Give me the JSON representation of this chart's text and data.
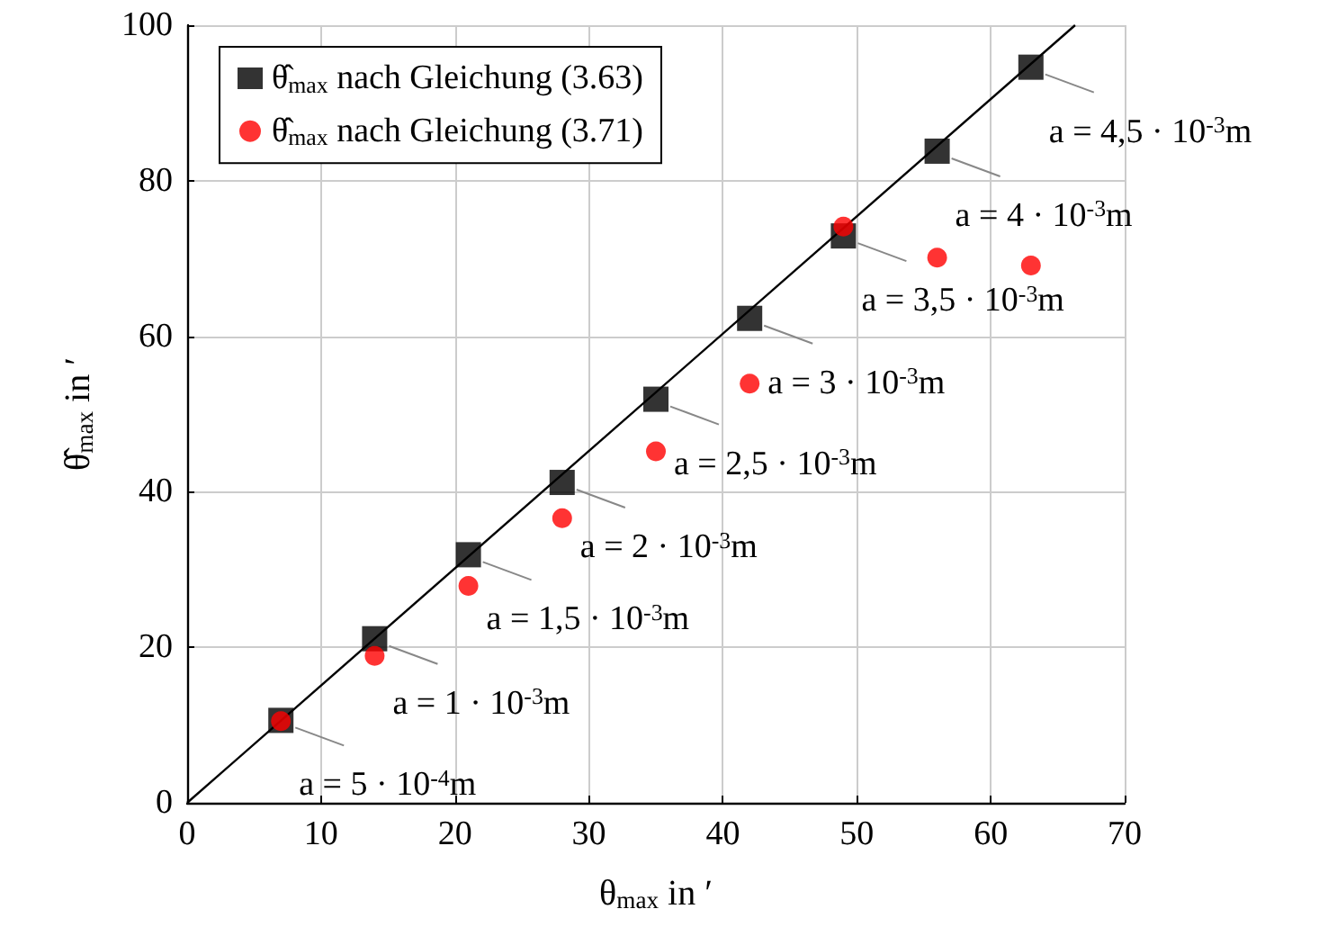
{
  "chart_data": {
    "type": "scatter",
    "xlabel": "θ$_{max}$ in ′",
    "ylabel": "θ̂$_{max}$ in ′",
    "xlim": [
      0,
      70
    ],
    "xticks": [
      0,
      10,
      20,
      30,
      40,
      50,
      60,
      70
    ],
    "ylim": [
      0,
      100
    ],
    "yticks": [
      0,
      20,
      40,
      60,
      80,
      100
    ],
    "grid": true,
    "legend": "top left",
    "series": [
      {
        "type": "line",
        "color": "#000000",
        "marker": "none",
        "x": [
          0,
          66.3
        ],
        "values": [
          0,
          100
        ]
      },
      {
        "name": "θ̂$_{max}$ nach Gleichung (3.63)",
        "color": "#000000",
        "marker": "square",
        "x": [
          7,
          14,
          21,
          28,
          35,
          42,
          49,
          56,
          63
        ],
        "values": [
          10.6,
          21.1,
          31.9,
          41.2,
          51.9,
          62.3,
          72.9,
          83.8,
          94.6
        ]
      },
      {
        "name": "θ̂$_{max}$ nach Gleichung (3.71)",
        "color": "#ff0000",
        "marker": "circle",
        "x": [
          7,
          14,
          21,
          28,
          35,
          42,
          49,
          56,
          63
        ],
        "values": [
          10.5,
          18.9,
          27.9,
          36.6,
          45.2,
          53.9,
          74.1,
          70.1,
          69.1
        ]
      }
    ],
    "annotations": [
      {
        "text": "a = 5 · 10$^{-4}$m",
        "x": 7,
        "y": 10.6
      },
      {
        "text": "a = 1 · 10$^{-3}$m",
        "x": 14,
        "y": 21.1
      },
      {
        "text": "a = 1,5 · 10$^{-3}$m",
        "x": 21,
        "y": 31.9
      },
      {
        "text": "a = 2 · 10$^{-3}$m",
        "x": 28,
        "y": 41.2
      },
      {
        "text": "a = 2,5 · 10$^{-3}$m",
        "x": 35,
        "y": 51.9
      },
      {
        "text": "a = 3 · 10$^{-3}$m",
        "x": 42,
        "y": 62.3
      },
      {
        "text": "a = 3,5 · 10$^{-3}$m",
        "x": 49,
        "y": 72.9
      },
      {
        "text": "a = 4 · 10$^{-3}$m",
        "x": 56,
        "y": 83.8
      },
      {
        "text": "a = 4,5 · 10$^{-3}$m",
        "x": 63,
        "y": 94.6
      }
    ]
  }
}
